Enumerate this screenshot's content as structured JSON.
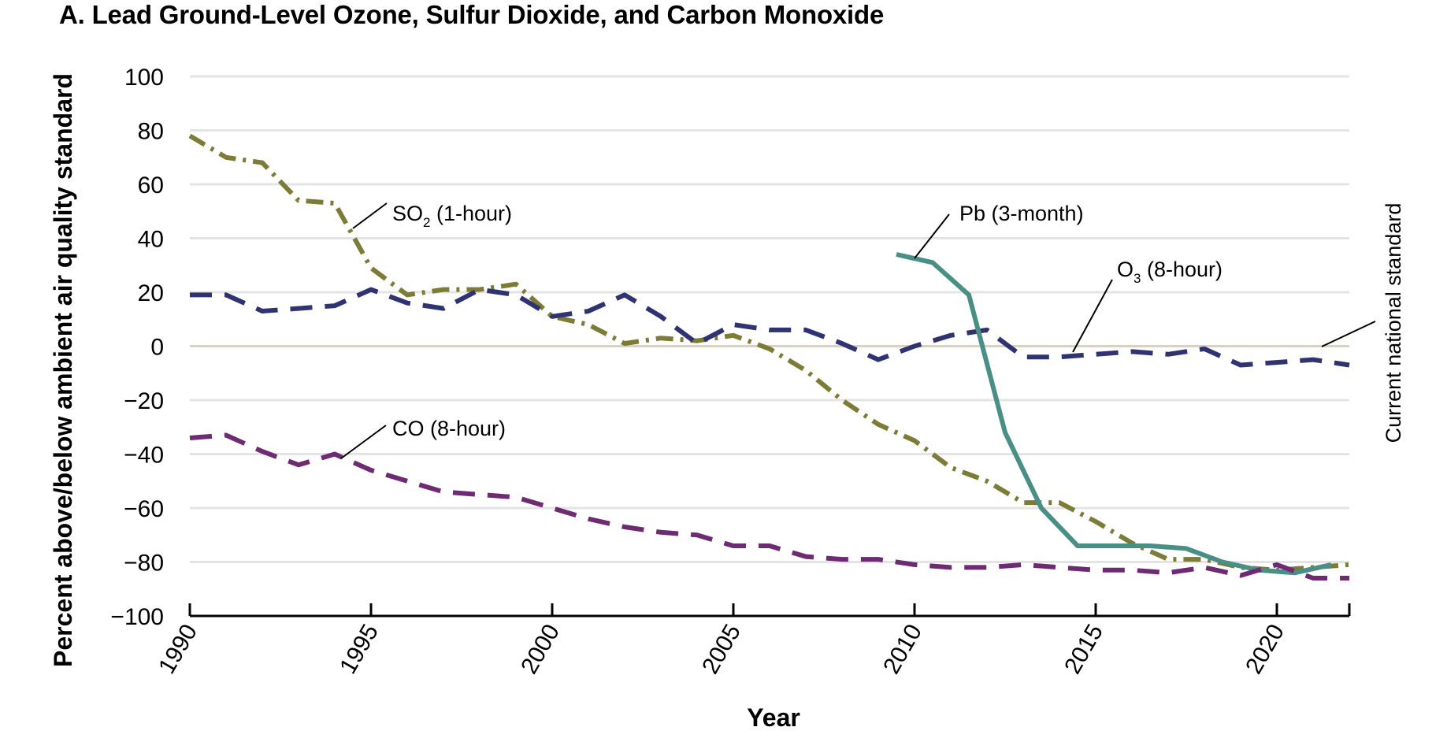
{
  "chart_data": {
    "type": "line",
    "title": "A.  Lead Ground-Level Ozone, Sulfur Dioxide, and Carbon Monoxide",
    "xlabel": "Year",
    "ylabel": "Percent above/below ambient air quality standard",
    "xlim": [
      1990,
      2022
    ],
    "ylim": [
      -100,
      100
    ],
    "x_ticks": [
      1990,
      1995,
      2000,
      2005,
      2010,
      2015,
      2020
    ],
    "y_ticks": [
      100,
      80,
      60,
      40,
      20,
      0,
      -20,
      -40,
      -60,
      -80,
      -100
    ],
    "y_tick_labels": [
      "100",
      "80",
      "60",
      "40",
      "20",
      "0",
      "−20",
      "−40",
      "−60",
      "−80",
      "−100"
    ],
    "grid": "horizontal",
    "reference_line": {
      "y": 0,
      "label": "Current national standard"
    },
    "series": [
      {
        "name": "SO2 (1-hour)",
        "label_main": "SO",
        "label_sub": "2",
        "label_rest": " (1-hour)",
        "color": "#7d7c36",
        "style": "dash-dot",
        "x": [
          1990,
          1991,
          1992,
          1993,
          1994,
          1995,
          1996,
          1997,
          1998,
          1999,
          2000,
          2001,
          2002,
          2003,
          2004,
          2005,
          2006,
          2007,
          2008,
          2009,
          2010,
          2011,
          2012,
          2013,
          2014,
          2015,
          2016,
          2017,
          2018,
          2019,
          2020,
          2021,
          2022
        ],
        "y": [
          78,
          70,
          68,
          54,
          53,
          29,
          19,
          21,
          21,
          23,
          11,
          8,
          1,
          3,
          2,
          4,
          -1,
          -9,
          -20,
          -29,
          -35,
          -45,
          -50,
          -58,
          -58,
          -65,
          -73,
          -79,
          -79,
          -82,
          -83,
          -82,
          -81
        ]
      },
      {
        "name": "O3 (8-hour)",
        "label_main": "O",
        "label_sub": "3",
        "label_rest": " (8-hour)",
        "color": "#2f3372",
        "style": "dashed",
        "x": [
          1990,
          1991,
          1992,
          1993,
          1994,
          1995,
          1996,
          1997,
          1998,
          1999,
          2000,
          2001,
          2002,
          2003,
          2004,
          2005,
          2006,
          2007,
          2008,
          2009,
          2010,
          2011,
          2012,
          2013,
          2014,
          2015,
          2016,
          2017,
          2018,
          2019,
          2020,
          2021,
          2022
        ],
        "y": [
          19,
          19,
          13,
          14,
          15,
          21,
          16,
          14,
          21,
          19,
          11,
          13,
          19,
          11,
          1,
          8,
          6,
          6,
          1,
          -5,
          0,
          4,
          6,
          -4,
          -4,
          -3,
          -2,
          -3,
          -1,
          -7,
          -6,
          -5,
          -7
        ]
      },
      {
        "name": "Pb (3-month)",
        "label_main": "Pb (3-month)",
        "label_sub": "",
        "label_rest": "",
        "color": "#4a8f86",
        "style": "solid",
        "x": [
          2009.5,
          2010.5,
          2011.5,
          2012.5,
          2013.5,
          2014.5,
          2015.5,
          2016.5,
          2017.5,
          2018.5,
          2019.5,
          2020.5,
          2021.5
        ],
        "y": [
          34,
          31,
          19,
          -32,
          -60,
          -74,
          -74,
          -74,
          -75,
          -80,
          -83,
          -84,
          -81
        ]
      },
      {
        "name": "CO (8-hour)",
        "label_main": "CO (8-hour)",
        "label_sub": "",
        "label_rest": "",
        "color": "#6e2a73",
        "style": "dashed",
        "x": [
          1990,
          1991,
          1992,
          1993,
          1994,
          1995,
          1996,
          1997,
          1998,
          1999,
          2000,
          2001,
          2002,
          2003,
          2004,
          2005,
          2006,
          2007,
          2008,
          2009,
          2010,
          2011,
          2012,
          2013,
          2014,
          2015,
          2016,
          2017,
          2018,
          2019,
          2020,
          2021,
          2022
        ],
        "y": [
          -34,
          -33,
          -39,
          -44,
          -40,
          -46,
          -50,
          -54,
          -55,
          -56,
          -60,
          -64,
          -67,
          -69,
          -70,
          -74,
          -74,
          -78,
          -79,
          -79,
          -81,
          -82,
          -82,
          -81,
          -82,
          -83,
          -83,
          -84,
          -82,
          -85,
          -81,
          -86,
          -86
        ]
      }
    ]
  }
}
